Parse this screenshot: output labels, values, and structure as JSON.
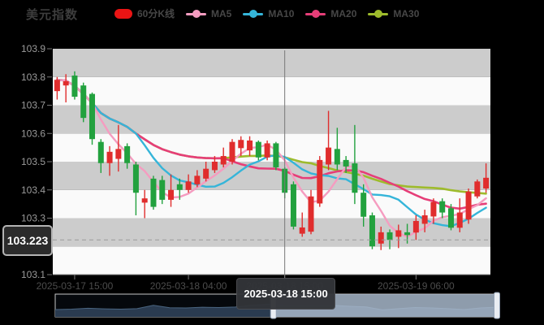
{
  "title": "美元指数",
  "legend": {
    "items": [
      {
        "label": "60分K线",
        "icon": "rect",
        "color": "#ea1414"
      },
      {
        "label": "MA5",
        "icon": "line",
        "color": "#f59cc0"
      },
      {
        "label": "MA10",
        "icon": "line",
        "color": "#35b5d9"
      },
      {
        "label": "MA20",
        "icon": "line",
        "color": "#e63e78"
      },
      {
        "label": "MA30",
        "icon": "line",
        "color": "#9ebb2c"
      }
    ]
  },
  "y_axis": {
    "labels": [
      "103.9",
      "103.8",
      "103.7",
      "103.6",
      "103.5",
      "103.4",
      "103.3",
      "103.2",
      "103.1"
    ],
    "max": 103.9,
    "min": 103.1
  },
  "x_axis": {
    "labels": [
      {
        "text": "2025-03-17 15:00",
        "index": 2
      },
      {
        "text": "2025-03-18 04:00",
        "index": 15
      },
      {
        "text": "2025-03-18 15:00",
        "index": 26
      },
      {
        "text": "2025-03-19 06:00",
        "index": 41
      }
    ]
  },
  "crosshair": {
    "index": 26,
    "time_label": "2025-03-18 15:00",
    "price_label": "103.223",
    "price_value": 103.223
  },
  "chart_data": {
    "type": "candlestick",
    "series_name": "60分K线",
    "interval": "60min",
    "ma_periods": [
      5,
      10,
      20,
      30
    ],
    "up_color": "#e02d2d",
    "down_color": "#22a13e",
    "grid_band_colors": [
      "#cccccc",
      "#fafafa"
    ],
    "ylim": [
      103.1,
      103.9
    ],
    "candles_ohlc": [
      [
        103.75,
        103.8,
        103.72,
        103.79
      ],
      [
        103.77,
        103.81,
        103.71,
        103.785
      ],
      [
        103.805,
        103.82,
        103.72,
        103.73
      ],
      [
        103.77,
        103.78,
        103.64,
        103.655
      ],
      [
        103.74,
        103.745,
        103.56,
        103.58
      ],
      [
        103.57,
        103.58,
        103.46,
        103.495
      ],
      [
        103.495,
        103.555,
        103.45,
        103.535
      ],
      [
        103.51,
        103.63,
        103.465,
        103.545
      ],
      [
        103.555,
        103.565,
        103.475,
        103.495
      ],
      [
        103.49,
        103.5,
        103.31,
        103.39
      ],
      [
        103.355,
        103.4,
        103.3,
        103.37
      ],
      [
        103.44,
        103.45,
        103.33,
        103.34
      ],
      [
        103.435,
        103.45,
        103.35,
        103.365
      ],
      [
        103.365,
        103.455,
        103.34,
        103.4
      ],
      [
        103.42,
        103.44,
        103.365,
        103.4
      ],
      [
        103.4,
        103.455,
        103.39,
        103.43
      ],
      [
        103.42,
        103.47,
        103.41,
        103.45
      ],
      [
        103.44,
        103.5,
        103.43,
        103.475
      ],
      [
        103.47,
        103.52,
        103.46,
        103.5
      ],
      [
        103.49,
        103.55,
        103.48,
        103.52
      ],
      [
        103.5,
        103.58,
        103.49,
        103.57
      ],
      [
        103.548,
        103.59,
        103.52,
        103.577
      ],
      [
        103.54,
        103.59,
        103.52,
        103.575
      ],
      [
        103.57,
        103.575,
        103.505,
        103.515
      ],
      [
        103.515,
        103.575,
        103.505,
        103.565
      ],
      [
        103.565,
        103.57,
        103.47,
        103.48
      ],
      [
        103.475,
        103.48,
        103.37,
        103.39
      ],
      [
        103.42,
        103.43,
        103.26,
        103.27
      ],
      [
        103.245,
        103.32,
        103.234,
        103.267
      ],
      [
        103.252,
        103.4,
        103.243,
        103.377
      ],
      [
        103.352,
        103.52,
        103.34,
        103.506
      ],
      [
        103.49,
        103.68,
        103.47,
        103.55
      ],
      [
        103.545,
        103.62,
        103.47,
        103.49
      ],
      [
        103.506,
        103.52,
        103.46,
        103.483
      ],
      [
        103.494,
        103.63,
        103.35,
        103.39
      ],
      [
        103.39,
        103.42,
        103.27,
        103.305
      ],
      [
        103.31,
        103.32,
        103.19,
        103.2
      ],
      [
        103.21,
        103.27,
        103.187,
        103.25
      ],
      [
        103.25,
        103.26,
        103.19,
        103.223
      ],
      [
        103.234,
        103.277,
        103.194,
        103.257
      ],
      [
        103.25,
        103.28,
        103.21,
        103.24
      ],
      [
        103.249,
        103.31,
        103.223,
        103.29
      ],
      [
        103.28,
        103.33,
        103.25,
        103.31
      ],
      [
        103.306,
        103.37,
        103.28,
        103.357
      ],
      [
        103.36,
        103.37,
        103.3,
        103.32
      ],
      [
        103.335,
        103.35,
        103.257,
        103.266
      ],
      [
        103.266,
        103.37,
        103.25,
        103.32
      ],
      [
        103.295,
        103.405,
        103.28,
        103.394
      ],
      [
        103.377,
        103.437,
        103.37,
        103.43
      ],
      [
        103.405,
        103.494,
        103.39,
        103.443
      ]
    ]
  },
  "navigator": {
    "profile": [
      0.32,
      0.34,
      0.39,
      0.36,
      0.34,
      0.37,
      0.56,
      0.42,
      0.41,
      0.45,
      0.43,
      0.46,
      0.56,
      0.62,
      0.58,
      0.55,
      0.52,
      0.55,
      0.5,
      0.47,
      0.3,
      0.37,
      0.43,
      0.41,
      0.37,
      0.32,
      0.41,
      0.45
    ],
    "window_start_ratio": 0.494,
    "window_end_ratio": 1.0,
    "area_fill": "#2a3b50",
    "area_stroke": "#4a6580",
    "window_fill": "rgba(173,189,208,0.82)"
  },
  "colors": {
    "background": "#000000",
    "y_label": "#9a9a9a",
    "x_label": "#4c4c4c",
    "axis_line": "#9a9a9a",
    "crosshair": "#777777",
    "dashed_price_line": "#9a9a9a"
  }
}
